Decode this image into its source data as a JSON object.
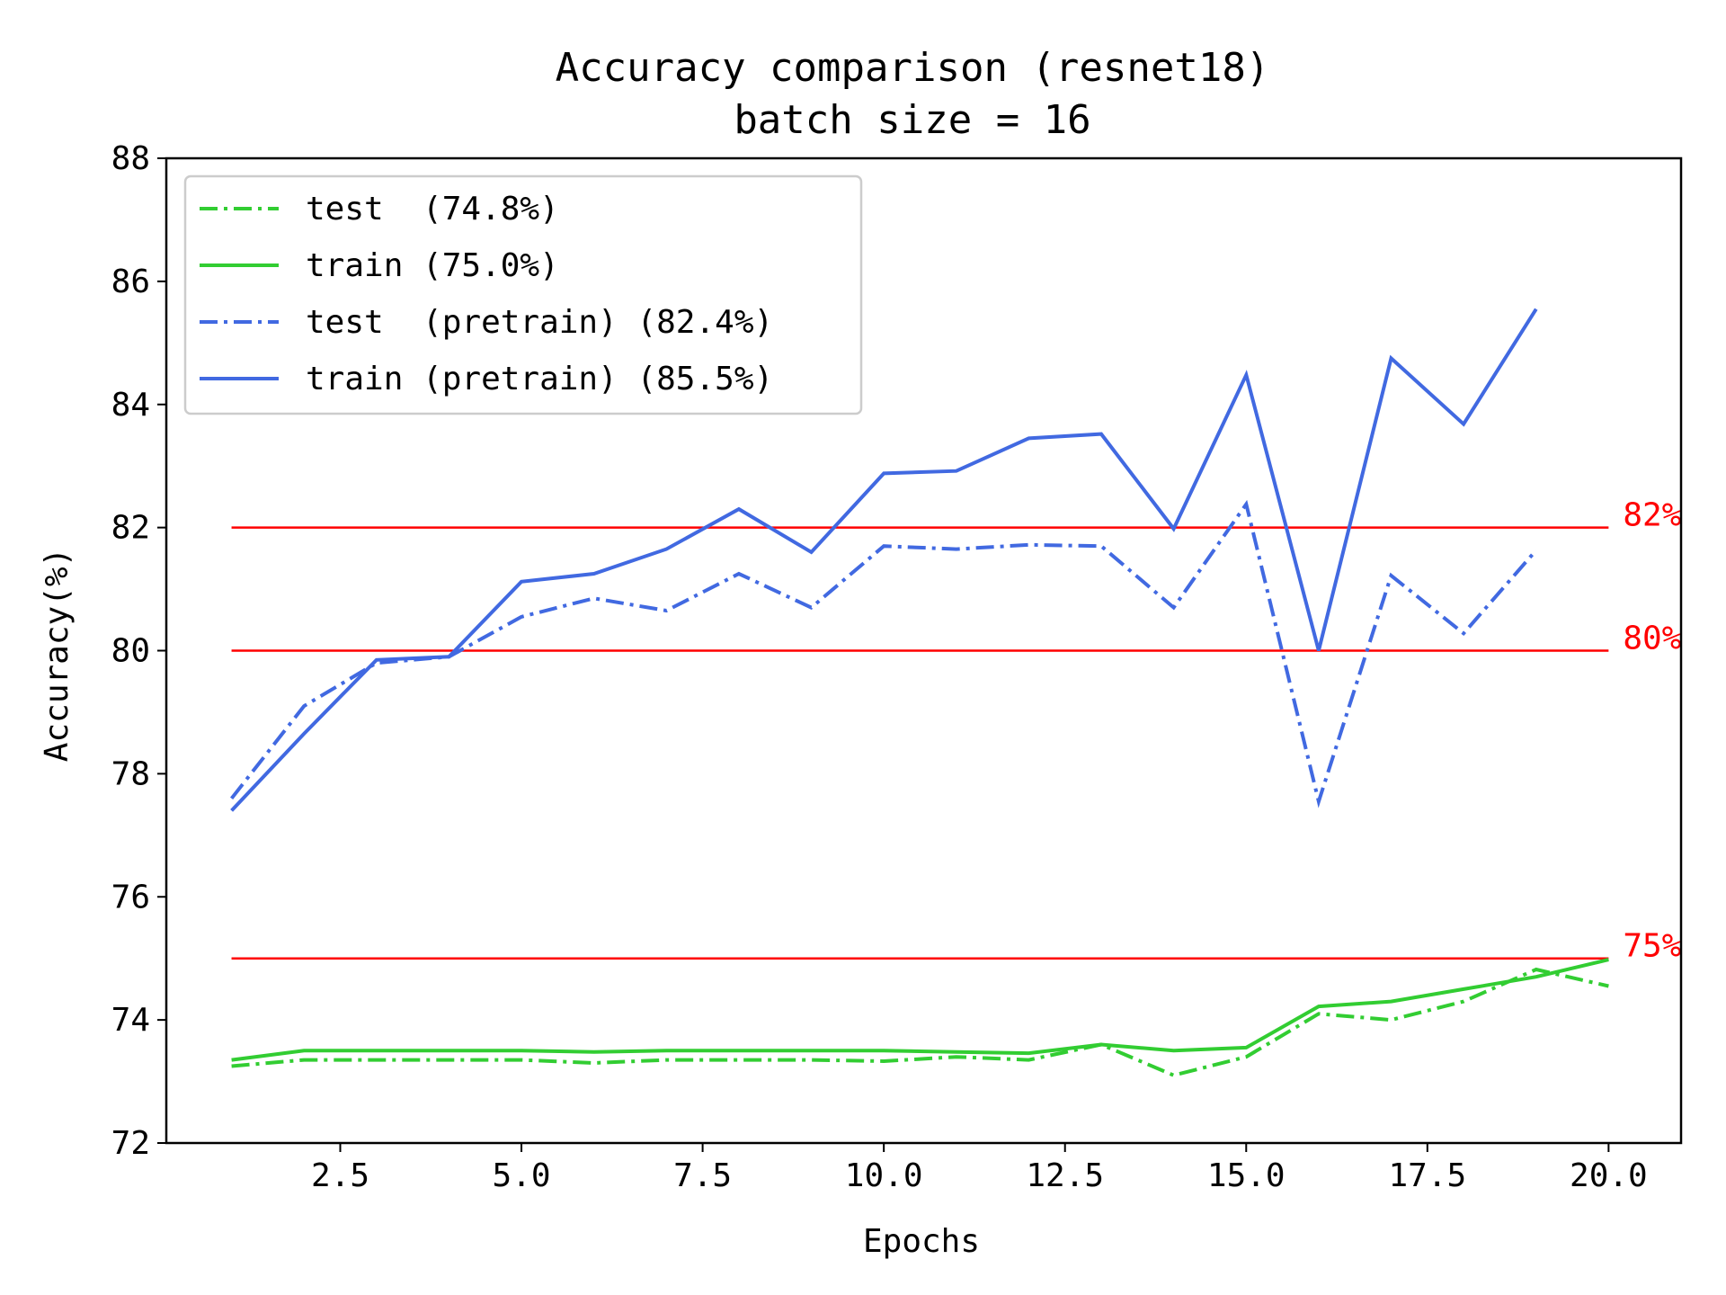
{
  "chart_data": {
    "type": "line",
    "title": "Accuracy comparison (resnet18)",
    "subtitle": "batch size = 16",
    "xlabel": "Epochs",
    "ylabel": "Accuracy(%)",
    "xlim": [
      0.1,
      21.0
    ],
    "ylim": [
      72,
      88
    ],
    "xticks": [
      "2.5",
      "5.0",
      "7.5",
      "10.0",
      "12.5",
      "15.0",
      "17.5",
      "20.0"
    ],
    "yticks": [
      "72",
      "74",
      "76",
      "78",
      "80",
      "82",
      "84",
      "86",
      "88"
    ],
    "grid": false,
    "legend_position": "top-left",
    "reference_lines": [
      {
        "y": 82,
        "label": "82%",
        "color": "#ff0000"
      },
      {
        "y": 80,
        "label": "80%",
        "color": "#ff0000"
      },
      {
        "y": 75,
        "label": "75%",
        "color": "#ff0000"
      }
    ],
    "series": [
      {
        "name": "test  (74.8%)",
        "color": "#32cd32",
        "style": "dashdot",
        "x": [
          1,
          2,
          3,
          4,
          5,
          6,
          7,
          8,
          9,
          10,
          11,
          12,
          13,
          14,
          15,
          16,
          17,
          18,
          19,
          20
        ],
        "y": [
          73.25,
          73.35,
          73.35,
          73.35,
          73.35,
          73.3,
          73.35,
          73.35,
          73.35,
          73.33,
          73.4,
          73.35,
          73.6,
          73.1,
          73.4,
          74.1,
          74.0,
          74.3,
          74.82,
          74.55
        ]
      },
      {
        "name": "train (75.0%)",
        "color": "#32cd32",
        "style": "solid",
        "x": [
          1,
          2,
          3,
          4,
          5,
          6,
          7,
          8,
          9,
          10,
          11,
          12,
          13,
          14,
          15,
          16,
          17,
          18,
          19,
          20
        ],
        "y": [
          73.35,
          73.5,
          73.5,
          73.5,
          73.5,
          73.48,
          73.5,
          73.5,
          73.5,
          73.5,
          73.48,
          73.46,
          73.6,
          73.5,
          73.55,
          74.22,
          74.3,
          74.5,
          74.7,
          74.98
        ]
      },
      {
        "name": "test  (pretrain) (82.4%)",
        "color": "#4169e1",
        "style": "dashdot",
        "x": [
          1,
          2,
          3,
          4,
          5,
          6,
          7,
          8,
          9,
          10,
          11,
          12,
          13,
          14,
          15,
          16,
          17,
          18,
          19
        ],
        "y": [
          77.6,
          79.1,
          79.8,
          79.9,
          80.55,
          80.85,
          80.65,
          81.25,
          80.7,
          81.7,
          81.65,
          81.72,
          81.7,
          80.7,
          82.38,
          77.55,
          81.22,
          80.28,
          81.63
        ]
      },
      {
        "name": "train (pretrain) (85.5%)",
        "color": "#4169e1",
        "style": "solid",
        "x": [
          1,
          2,
          3,
          4,
          5,
          6,
          7,
          8,
          9,
          10,
          11,
          12,
          13,
          14,
          15,
          16,
          17,
          18,
          19
        ],
        "y": [
          77.4,
          78.65,
          79.85,
          79.9,
          81.12,
          81.25,
          81.65,
          82.3,
          81.6,
          82.88,
          82.92,
          83.45,
          83.52,
          81.98,
          84.48,
          80.0,
          84.75,
          83.68,
          85.55
        ]
      }
    ]
  }
}
